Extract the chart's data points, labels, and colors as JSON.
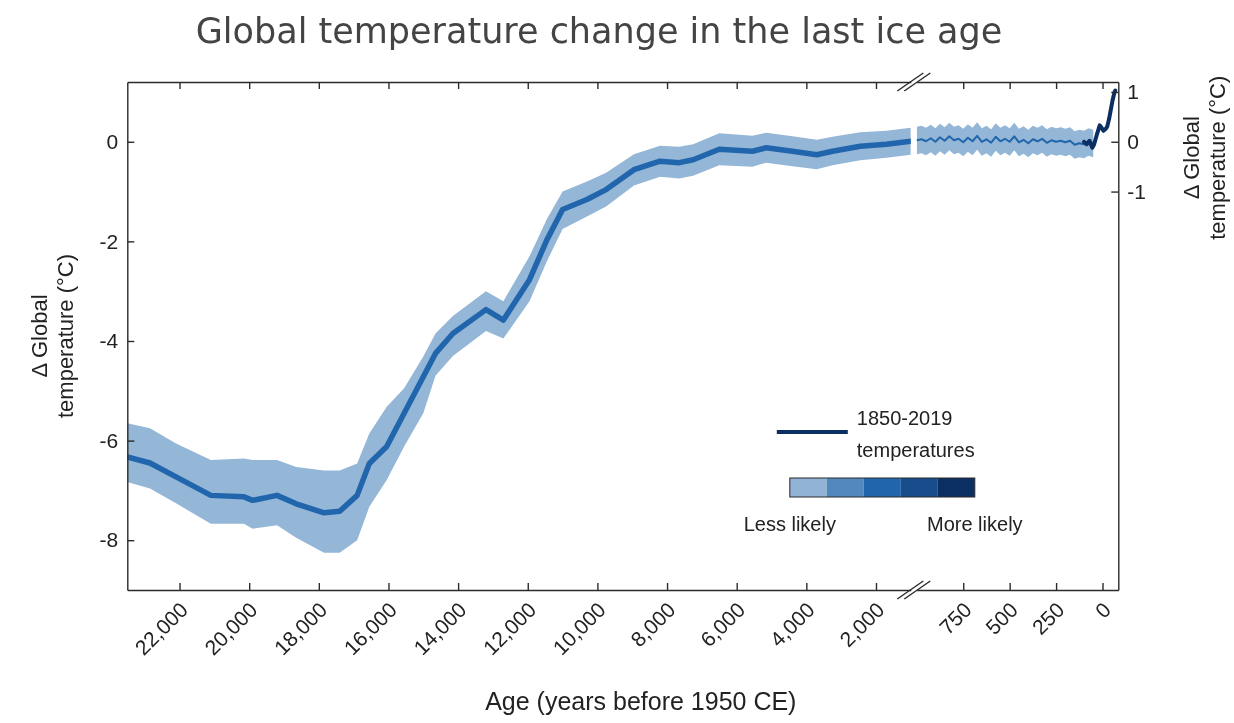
{
  "chart_data": [
    {
      "type": "line",
      "title": "Global temperature change in the last ice age",
      "xlabel": "Age (years before 1950 CE)",
      "ylabel": "Δ Global temperature (°C)",
      "xlim": [
        23500,
        1000
      ],
      "xticks": [
        {
          "value": 22000,
          "label": "22,000"
        },
        {
          "value": 20000,
          "label": "20,000"
        },
        {
          "value": 18000,
          "label": "18,000"
        },
        {
          "value": 16000,
          "label": "16,000"
        },
        {
          "value": 14000,
          "label": "14,000"
        },
        {
          "value": 12000,
          "label": "12,000"
        },
        {
          "value": 10000,
          "label": "10,000"
        },
        {
          "value": 8000,
          "label": "8,000"
        },
        {
          "value": 6000,
          "label": "6,000"
        },
        {
          "value": 4000,
          "label": "4,000"
        },
        {
          "value": 2000,
          "label": "2,000"
        }
      ],
      "ylim": [
        -9,
        1.2
      ],
      "yticks": [
        0,
        -2,
        -4,
        -6,
        -8
      ],
      "x": [
        23500,
        22850,
        22100,
        21100,
        20150,
        19900,
        19200,
        18650,
        17850,
        17400,
        16900,
        16550,
        16050,
        15550,
        15000,
        14650,
        14150,
        13200,
        12700,
        11950,
        11450,
        11000,
        10300,
        9750,
        8950,
        8200,
        7650,
        7250,
        6500,
        5550,
        5150,
        4400,
        3700,
        3250,
        2450,
        1700,
        1000
      ],
      "series": [
        {
          "color": "#2166ac",
          "values": [
            -6.33,
            -6.45,
            -6.73,
            -7.1,
            -7.13,
            -7.2,
            -7.1,
            -7.27,
            -7.45,
            -7.42,
            -7.1,
            -6.46,
            -6.12,
            -5.45,
            -4.72,
            -4.25,
            -3.85,
            -3.37,
            -3.58,
            -2.77,
            -1.97,
            -1.36,
            -1.16,
            -0.96,
            -0.56,
            -0.39,
            -0.42,
            -0.36,
            -0.15,
            -0.19,
            -0.12,
            -0.19,
            -0.26,
            -0.19,
            -0.09,
            -0.05,
            0.01
          ],
          "upper": [
            -5.65,
            -5.75,
            -6.06,
            -6.39,
            -6.36,
            -6.39,
            -6.39,
            -6.53,
            -6.6,
            -6.6,
            -6.46,
            -5.86,
            -5.32,
            -4.95,
            -4.31,
            -3.85,
            -3.5,
            -3.0,
            -3.2,
            -2.3,
            -1.55,
            -1.0,
            -0.8,
            -0.62,
            -0.25,
            -0.08,
            -0.1,
            -0.05,
            0.17,
            0.12,
            0.18,
            0.11,
            0.04,
            0.1,
            0.19,
            0.22,
            0.28
          ],
          "lower": [
            -6.83,
            -6.96,
            -7.26,
            -7.67,
            -7.67,
            -7.77,
            -7.7,
            -7.95,
            -8.25,
            -8.25,
            -8.0,
            -7.33,
            -6.79,
            -6.12,
            -5.45,
            -4.7,
            -4.3,
            -3.8,
            -3.95,
            -3.2,
            -2.4,
            -1.75,
            -1.5,
            -1.3,
            -0.88,
            -0.7,
            -0.74,
            -0.68,
            -0.47,
            -0.5,
            -0.42,
            -0.49,
            -0.55,
            -0.47,
            -0.37,
            -0.32,
            -0.26
          ]
        }
      ]
    },
    {
      "type": "line",
      "ylabel": "Δ Global temperature (°C)",
      "xlim": [
        1000,
        -85
      ],
      "xticks": [
        750,
        500,
        250,
        0
      ],
      "ylim": [
        -9,
        1.2
      ],
      "yticks": [
        1,
        0,
        -1
      ],
      "legend": "bottom left",
      "annotations": [
        "Less likely",
        "More likely"
      ],
      "series": [
        {
          "color": "#2166ac",
          "x": [
            1000,
            975,
            950,
            925,
            900,
            875,
            850,
            825,
            800,
            775,
            750,
            725,
            700,
            675,
            650,
            625,
            600,
            575,
            550,
            525,
            500,
            475,
            450,
            425,
            400,
            375,
            350,
            325,
            300,
            275,
            250,
            225,
            200,
            175,
            150,
            125,
            100,
            75,
            50
          ],
          "values": [
            0.03,
            0.05,
            0.01,
            0.07,
            0.0,
            0.09,
            0.02,
            0.11,
            0.03,
            0.06,
            -0.01,
            0.08,
            0.01,
            0.12,
            0.0,
            0.05,
            -0.02,
            0.1,
            0.01,
            0.06,
            0.0,
            0.11,
            -0.01,
            0.04,
            -0.03,
            0.05,
            0.01,
            0.06,
            -0.02,
            0.03,
            0.0,
            0.02,
            -0.01,
            0.02,
            -0.06,
            -0.03,
            -0.05,
            0.0,
            -0.03
          ],
          "upper": [
            0.3,
            0.32,
            0.28,
            0.34,
            0.27,
            0.36,
            0.29,
            0.38,
            0.3,
            0.33,
            0.26,
            0.35,
            0.28,
            0.39,
            0.27,
            0.32,
            0.25,
            0.37,
            0.28,
            0.33,
            0.27,
            0.38,
            0.26,
            0.31,
            0.24,
            0.32,
            0.28,
            0.33,
            0.25,
            0.3,
            0.27,
            0.29,
            0.26,
            0.29,
            0.21,
            0.24,
            0.22,
            0.27,
            0.24
          ],
          "lower": [
            -0.25,
            -0.23,
            -0.27,
            -0.21,
            -0.28,
            -0.19,
            -0.26,
            -0.17,
            -0.25,
            -0.22,
            -0.29,
            -0.2,
            -0.27,
            -0.16,
            -0.28,
            -0.23,
            -0.3,
            -0.18,
            -0.27,
            -0.22,
            -0.28,
            -0.17,
            -0.29,
            -0.24,
            -0.31,
            -0.23,
            -0.27,
            -0.22,
            -0.3,
            -0.25,
            -0.28,
            -0.26,
            -0.29,
            -0.26,
            -0.34,
            -0.31,
            -0.33,
            -0.28,
            -0.31
          ]
        },
        {
          "name": "1850-2019 temperatures",
          "color": "#0b2f63",
          "x": [
            100,
            85,
            70,
            55,
            45,
            30,
            15,
            5,
            -5,
            -15,
            -25,
            -35,
            -45,
            -55,
            -65,
            -69
          ],
          "values": [
            0.0,
            -0.05,
            0.02,
            -0.12,
            -0.05,
            0.15,
            0.33,
            0.28,
            0.22,
            0.25,
            0.3,
            0.45,
            0.65,
            0.85,
            1.0,
            1.03
          ]
        }
      ]
    }
  ]
}
